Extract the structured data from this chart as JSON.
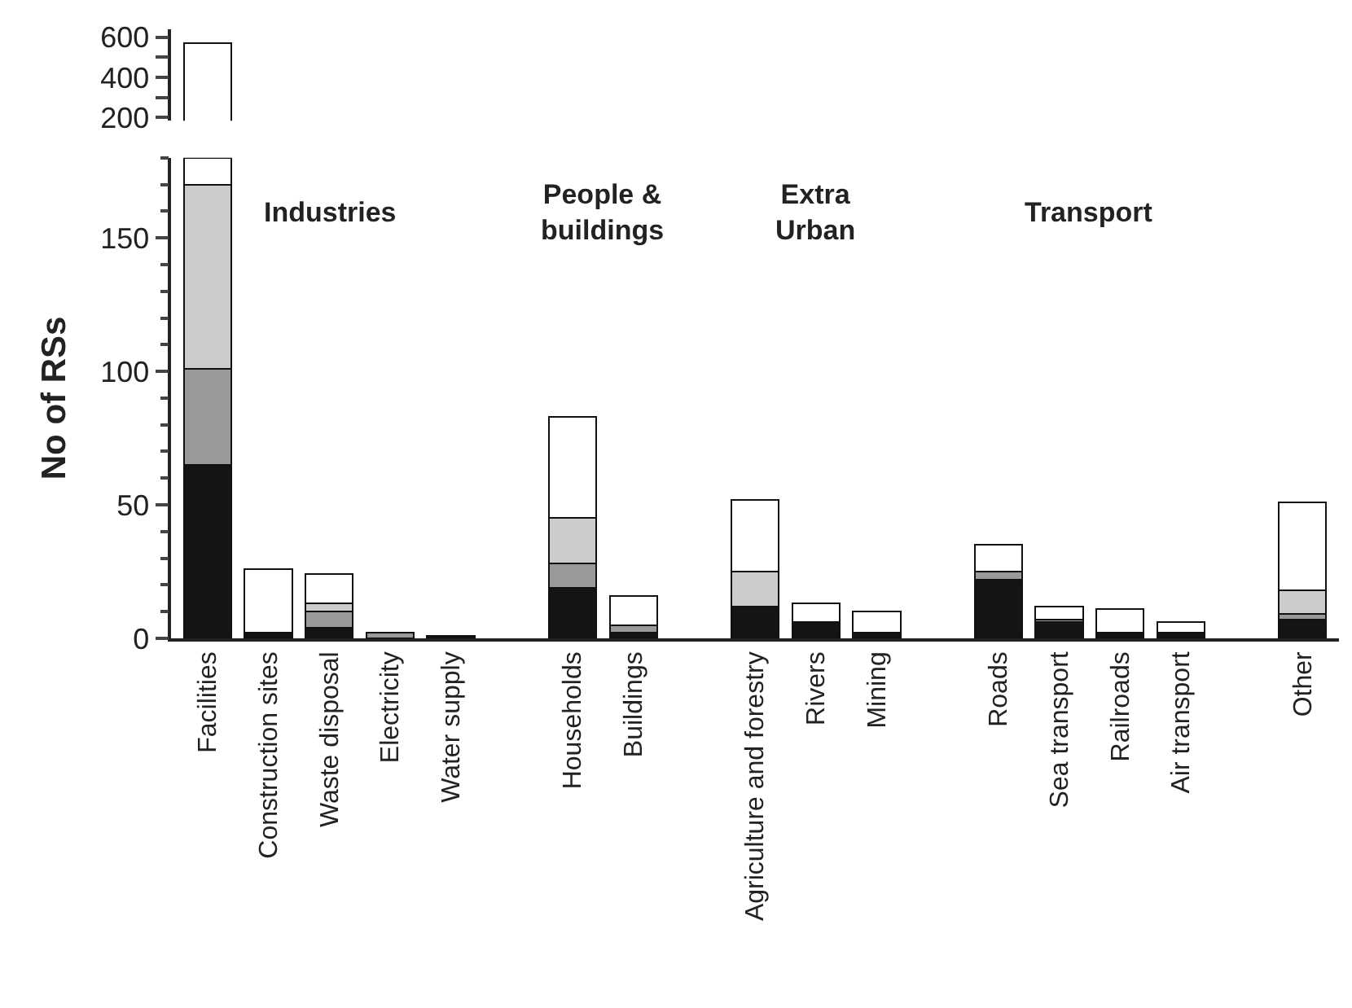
{
  "chart_data": [
    {
      "type": "bar",
      "tick_labels": "y",
      "categories": [
        null
      ],
      "series": [
        {
          "color": "#ffffff",
          "values": [
            570
          ]
        }
      ],
      "ylim": [
        184,
        640
      ],
      "yticks": [
        200,
        {
          "value": 300,
          "label": null
        },
        400,
        {
          "value": 500,
          "label": null
        },
        600
      ]
    },
    {
      "type": "bar",
      "stacked": true,
      "ylabel": "No of RSs",
      "categories": [
        "Facilities",
        "Construction sites",
        "Waste disposal",
        "Electricity",
        "Water supply",
        null,
        "Households",
        "Buildings",
        null,
        "Agriculture and forestry",
        "Rivers",
        "Mining",
        null,
        "Roads",
        "Sea transport",
        "Railroads",
        "Air transport",
        null,
        "Other"
      ],
      "series": [
        {
          "color": "#141414",
          "values": [
            65,
            2,
            4,
            0,
            1,
            null,
            19,
            2,
            null,
            12,
            6,
            2,
            null,
            22,
            6,
            2,
            2,
            null,
            7
          ]
        },
        {
          "color": "#999999",
          "values": [
            36,
            0,
            6,
            2,
            0,
            null,
            9,
            3,
            null,
            0,
            0,
            0,
            null,
            3,
            1,
            0,
            0,
            null,
            2
          ]
        },
        {
          "color": "#cccccc",
          "values": [
            69,
            0,
            3,
            0,
            0,
            null,
            17,
            0,
            null,
            13,
            0,
            0,
            null,
            0,
            0,
            0,
            0,
            null,
            9
          ]
        },
        {
          "color": "#ffffff",
          "values": [
            10,
            24,
            11,
            0,
            0,
            null,
            38,
            11,
            null,
            27,
            7,
            8,
            null,
            10,
            5,
            9,
            4,
            null,
            33
          ]
        }
      ],
      "ylim": [
        0,
        180
      ],
      "yticks": [
        0,
        50,
        100,
        150
      ],
      "annotations": [
        "Industries",
        "People &\nbuildings",
        "Extra\nUrban",
        "Transport"
      ]
    }
  ]
}
